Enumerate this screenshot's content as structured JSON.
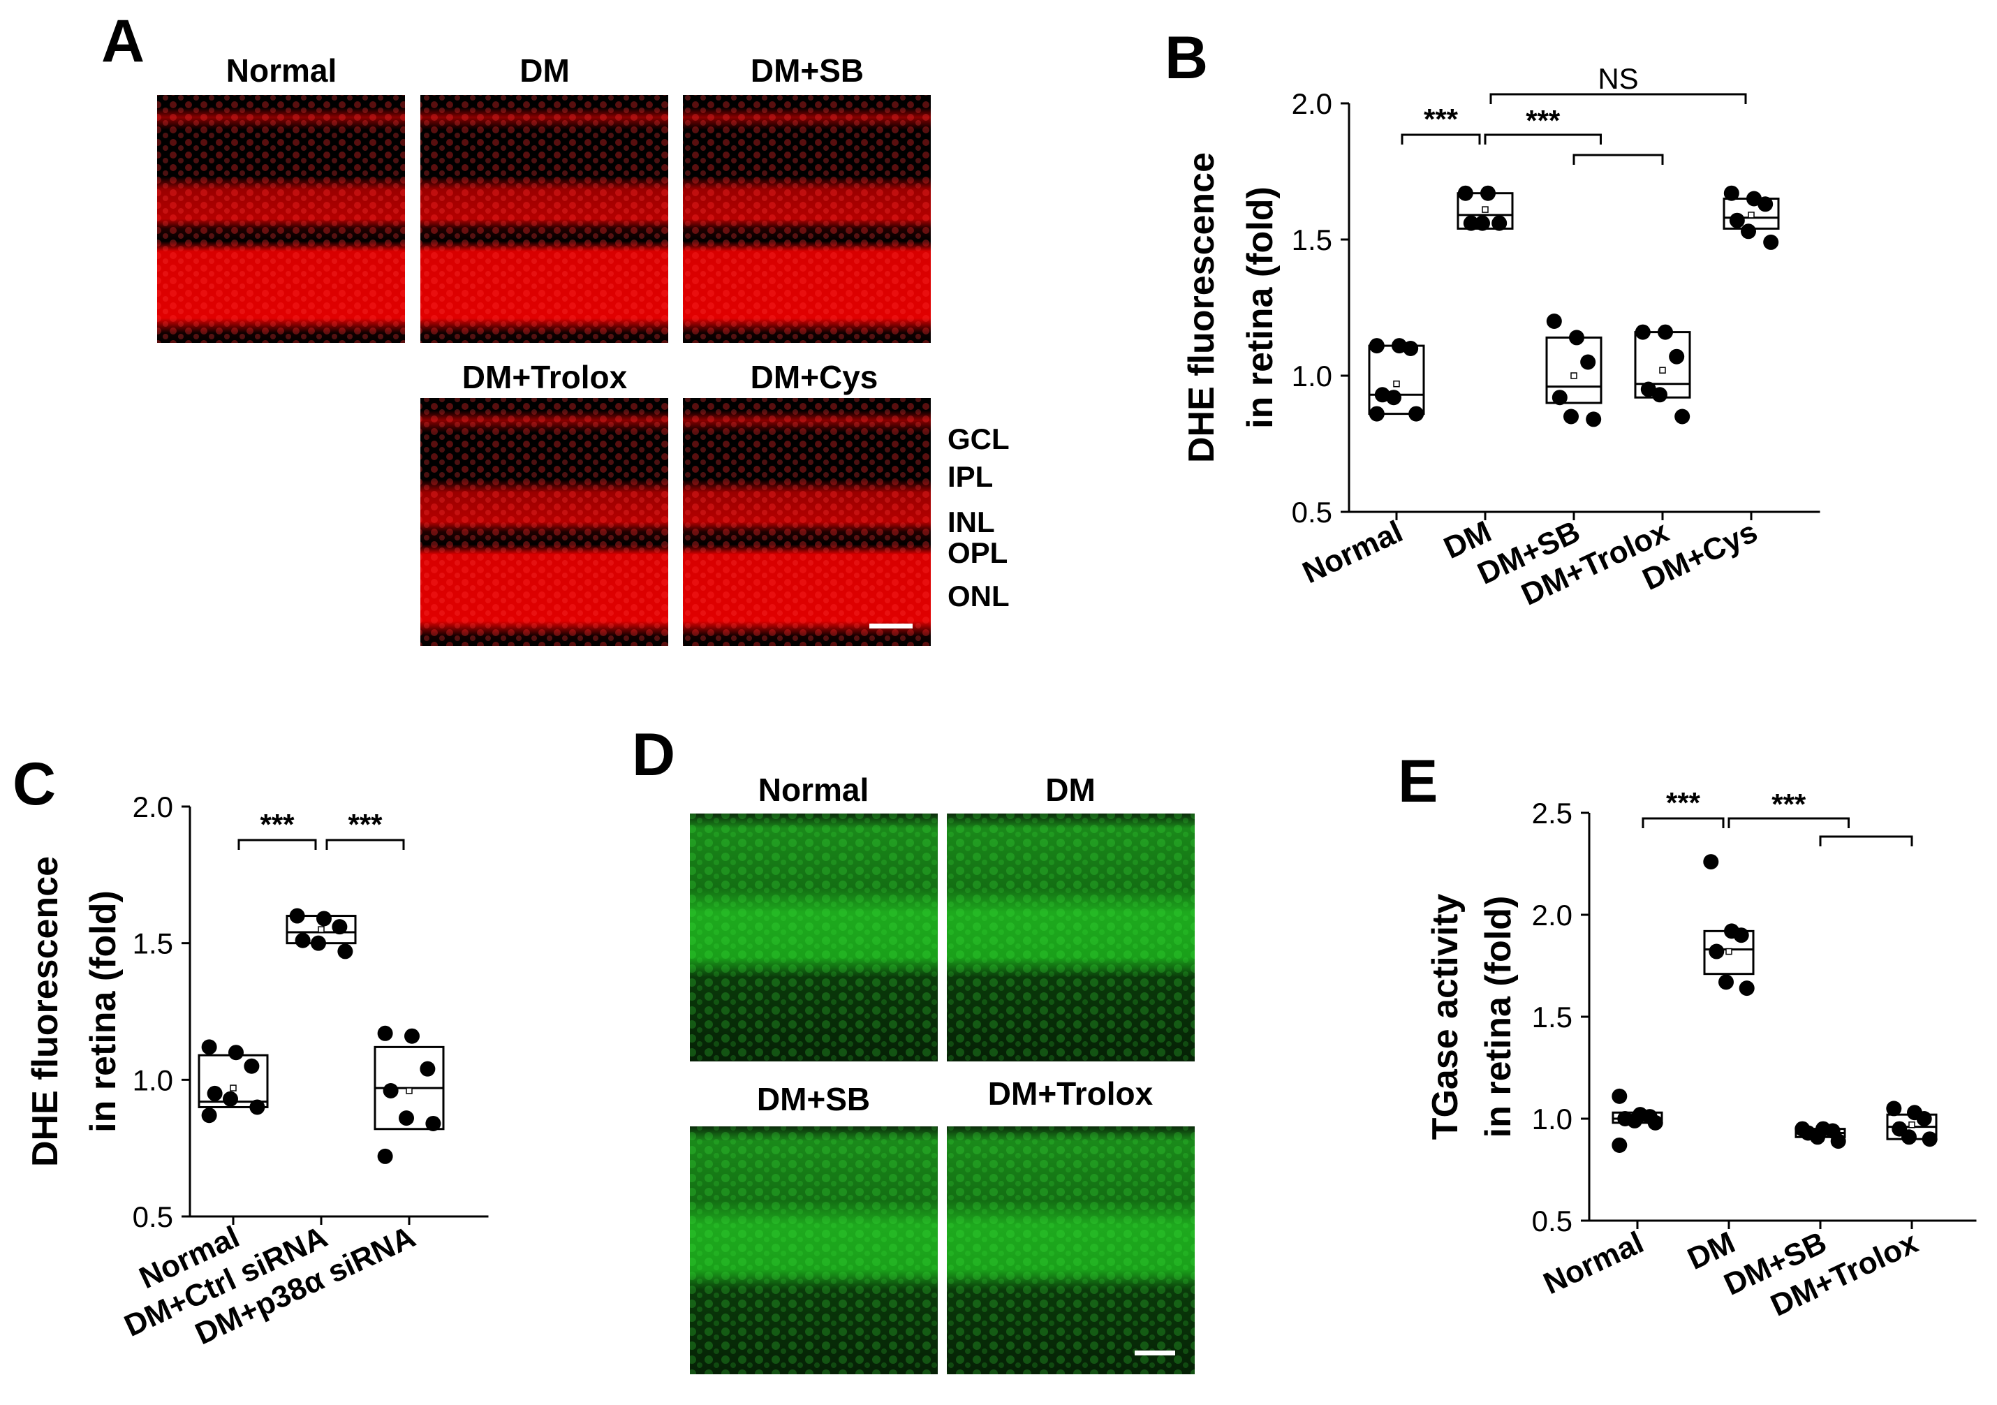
{
  "panels": {
    "A": {
      "letter": "A",
      "image_labels": [
        "Normal",
        "DM",
        "DM+SB",
        "DM+Trolox",
        "DM+Cys"
      ],
      "layer_labels": [
        "GCL",
        "IPL",
        "INL",
        "OPL",
        "ONL"
      ],
      "stain_color": "#ff0000"
    },
    "B": {
      "letter": "B"
    },
    "C": {
      "letter": "C"
    },
    "D": {
      "letter": "D",
      "image_labels": [
        "Normal",
        "DM",
        "DM+SB",
        "DM+Trolox"
      ],
      "stain_color": "#1ec81e"
    },
    "E": {
      "letter": "E"
    }
  },
  "chart_data": [
    {
      "id": "B",
      "type": "box",
      "ylabel": [
        "DHE fluorescence",
        "in retina (fold)"
      ],
      "ylim": [
        0.5,
        2.0
      ],
      "yticks": [
        "0.5",
        "1.0",
        "1.5",
        "2.0"
      ],
      "categories": [
        "Normal",
        "DM",
        "DM+SB",
        "DM+Trolox",
        "DM+Cys"
      ],
      "boxes": [
        {
          "q1": 0.86,
          "median": 0.93,
          "q3": 1.11,
          "mean": 0.97,
          "points": [
            1.11,
            1.11,
            1.1,
            0.93,
            0.92,
            0.86,
            0.86
          ]
        },
        {
          "q1": 1.54,
          "median": 1.59,
          "q3": 1.67,
          "mean": 1.61,
          "points": [
            1.67,
            1.67,
            1.56,
            1.56,
            1.56
          ]
        },
        {
          "q1": 0.9,
          "median": 0.96,
          "q3": 1.14,
          "mean": 1.0,
          "points": [
            1.2,
            1.14,
            1.05,
            0.92,
            0.85,
            0.84
          ]
        },
        {
          "q1": 0.92,
          "median": 0.97,
          "q3": 1.16,
          "mean": 1.02,
          "points": [
            1.16,
            1.16,
            1.07,
            0.95,
            0.93,
            0.85
          ]
        },
        {
          "q1": 1.54,
          "median": 1.58,
          "q3": 1.65,
          "mean": 1.59,
          "points": [
            1.67,
            1.65,
            1.63,
            1.57,
            1.53,
            1.49
          ]
        }
      ],
      "significance": [
        {
          "from": 0,
          "to": 1,
          "label": "***"
        },
        {
          "from": 1,
          "to": [
            2,
            3
          ],
          "label": "***"
        },
        {
          "from": 1,
          "to": 4,
          "label": "NS"
        }
      ]
    },
    {
      "id": "C",
      "type": "box",
      "ylabel": [
        "DHE fluorescence",
        "in retina (fold)"
      ],
      "ylim": [
        0.5,
        2.0
      ],
      "yticks": [
        "0.5",
        "1.0",
        "1.5",
        "2.0"
      ],
      "categories": [
        "Normal",
        "DM+Ctrl siRNA",
        "DM+p38α siRNA"
      ],
      "boxes": [
        {
          "q1": 0.9,
          "median": 0.92,
          "q3": 1.09,
          "mean": 0.97,
          "points": [
            1.12,
            1.1,
            1.05,
            0.95,
            0.93,
            0.9,
            0.87
          ]
        },
        {
          "q1": 1.5,
          "median": 1.54,
          "q3": 1.6,
          "mean": 1.55,
          "points": [
            1.6,
            1.59,
            1.56,
            1.51,
            1.5,
            1.47
          ]
        },
        {
          "q1": 0.82,
          "median": 0.97,
          "q3": 1.12,
          "mean": 0.96,
          "points": [
            1.17,
            1.16,
            1.04,
            0.96,
            0.86,
            0.84,
            0.72
          ]
        }
      ],
      "significance": [
        {
          "from": 0,
          "to": 1,
          "label": "***"
        },
        {
          "from": 1,
          "to": 2,
          "label": "***"
        }
      ]
    },
    {
      "id": "E",
      "type": "box",
      "ylabel": [
        "TGase activity",
        "in retina (fold)"
      ],
      "ylim": [
        0.5,
        2.5
      ],
      "yticks": [
        "0.5",
        "1.0",
        "1.5",
        "2.0",
        "2.5"
      ],
      "categories": [
        "Normal",
        "DM",
        "DM+SB",
        "DM+Trolox"
      ],
      "boxes": [
        {
          "q1": 0.98,
          "median": 1.0,
          "q3": 1.03,
          "mean": 1.01,
          "points": [
            1.11,
            1.02,
            1.01,
            1.0,
            0.99,
            0.98,
            0.87
          ]
        },
        {
          "q1": 1.71,
          "median": 1.83,
          "q3": 1.92,
          "mean": 1.82,
          "points": [
            2.26,
            1.92,
            1.9,
            1.82,
            1.67,
            1.64
          ]
        },
        {
          "q1": 0.91,
          "median": 0.93,
          "q3": 0.95,
          "mean": 0.93,
          "points": [
            0.95,
            0.95,
            0.94,
            0.93,
            0.91,
            0.89
          ]
        },
        {
          "q1": 0.9,
          "median": 0.96,
          "q3": 1.02,
          "mean": 0.97,
          "points": [
            1.05,
            1.03,
            1.0,
            0.95,
            0.91,
            0.9
          ]
        }
      ],
      "significance": [
        {
          "from": 0,
          "to": 1,
          "label": "***"
        },
        {
          "from": 1,
          "to": [
            2,
            3
          ],
          "label": "***"
        }
      ]
    }
  ]
}
